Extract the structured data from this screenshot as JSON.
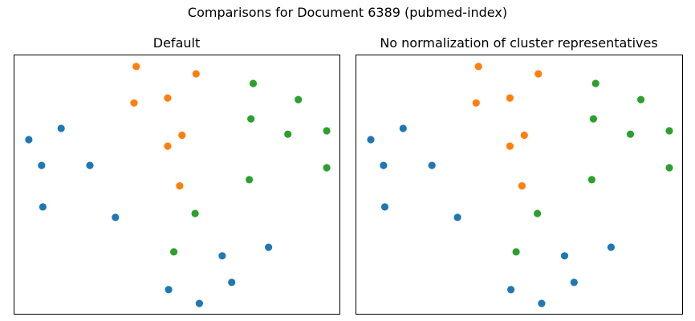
{
  "suptitle": "Comparisons for Document 6389 (pubmed-index)",
  "colors": {
    "blue": "#1f77b4",
    "orange": "#ff7f0e",
    "green": "#2ca02c"
  },
  "chart_data": [
    {
      "type": "scatter",
      "title": "Default",
      "xlabel": "",
      "ylabel": "",
      "xlim": [
        0,
        100
      ],
      "ylim": [
        0,
        100
      ],
      "axes_visible": false,
      "grid": false,
      "series": [
        {
          "color": "blue",
          "points": [
            {
              "x": 4.4,
              "y": 67.6
            },
            {
              "x": 14.3,
              "y": 71.9
            },
            {
              "x": 8.3,
              "y": 57.7
            },
            {
              "x": 23.1,
              "y": 57.7
            },
            {
              "x": 8.7,
              "y": 41.7
            },
            {
              "x": 30.9,
              "y": 37.7
            },
            {
              "x": 77.8,
              "y": 26.2
            },
            {
              "x": 63.6,
              "y": 22.9
            },
            {
              "x": 66.5,
              "y": 12.7
            },
            {
              "x": 47.2,
              "y": 9.9
            },
            {
              "x": 56.6,
              "y": 4.6
            }
          ]
        },
        {
          "color": "orange",
          "points": [
            {
              "x": 37.3,
              "y": 95.7
            },
            {
              "x": 55.6,
              "y": 92.9
            },
            {
              "x": 36.6,
              "y": 81.7
            },
            {
              "x": 46.9,
              "y": 83.6
            },
            {
              "x": 51.3,
              "y": 69.3
            },
            {
              "x": 46.9,
              "y": 65.1
            },
            {
              "x": 50.6,
              "y": 49.8
            }
          ]
        },
        {
          "color": "green",
          "points": [
            {
              "x": 73.1,
              "y": 89.2
            },
            {
              "x": 86.9,
              "y": 83.0
            },
            {
              "x": 72.4,
              "y": 75.6
            },
            {
              "x": 83.7,
              "y": 69.7
            },
            {
              "x": 95.6,
              "y": 71.0
            },
            {
              "x": 71.9,
              "y": 52.2
            },
            {
              "x": 95.6,
              "y": 56.8
            },
            {
              "x": 55.3,
              "y": 39.2
            },
            {
              "x": 48.8,
              "y": 24.4
            }
          ]
        }
      ]
    },
    {
      "type": "scatter",
      "title": "No normalization of cluster representatives",
      "xlabel": "",
      "ylabel": "",
      "xlim": [
        0,
        100
      ],
      "ylim": [
        0,
        100
      ],
      "axes_visible": false,
      "grid": false,
      "series": [
        {
          "color": "blue",
          "points": [
            {
              "x": 4.4,
              "y": 67.6
            },
            {
              "x": 14.3,
              "y": 71.9
            },
            {
              "x": 8.3,
              "y": 57.7
            },
            {
              "x": 23.1,
              "y": 57.7
            },
            {
              "x": 8.7,
              "y": 41.7
            },
            {
              "x": 30.9,
              "y": 37.7
            },
            {
              "x": 77.8,
              "y": 26.2
            },
            {
              "x": 63.6,
              "y": 22.9
            },
            {
              "x": 66.5,
              "y": 12.7
            },
            {
              "x": 47.2,
              "y": 9.9
            },
            {
              "x": 56.6,
              "y": 4.6
            }
          ]
        },
        {
          "color": "orange",
          "points": [
            {
              "x": 37.3,
              "y": 95.7
            },
            {
              "x": 55.6,
              "y": 92.9
            },
            {
              "x": 36.6,
              "y": 81.7
            },
            {
              "x": 46.9,
              "y": 83.6
            },
            {
              "x": 51.3,
              "y": 69.3
            },
            {
              "x": 46.9,
              "y": 65.1
            },
            {
              "x": 50.6,
              "y": 49.8
            }
          ]
        },
        {
          "color": "green",
          "points": [
            {
              "x": 73.1,
              "y": 89.2
            },
            {
              "x": 86.9,
              "y": 83.0
            },
            {
              "x": 72.4,
              "y": 75.6
            },
            {
              "x": 83.7,
              "y": 69.7
            },
            {
              "x": 95.6,
              "y": 71.0
            },
            {
              "x": 71.9,
              "y": 52.2
            },
            {
              "x": 95.6,
              "y": 56.8
            },
            {
              "x": 55.3,
              "y": 39.2
            },
            {
              "x": 48.8,
              "y": 24.4
            }
          ]
        }
      ]
    }
  ]
}
